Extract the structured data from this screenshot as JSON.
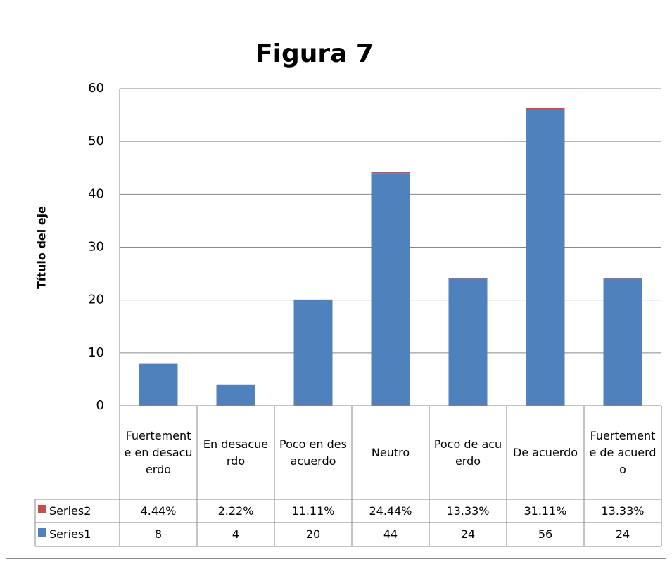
{
  "chart_data": {
    "type": "stacked_bar",
    "title": "Figura 7",
    "y_axis_label": "Título del eje",
    "categories": [
      "Fuertemente en desacuerdo",
      "En desacuerdo",
      "Poco en desacuerdo",
      "Neutro",
      "Poco de acuerdo",
      "De acuerdo",
      "Fuertemente de acuerdo"
    ],
    "series": [
      {
        "name": "Series1",
        "color": "#4f81bd",
        "values": [
          8,
          4,
          20,
          44,
          24,
          56,
          24
        ]
      },
      {
        "name": "Series2",
        "color": "#c0504d",
        "values": [
          0.0444,
          0.0222,
          0.1111,
          0.2444,
          0.1333,
          0.3111,
          0.1333
        ],
        "value_labels": [
          "4.44%",
          "2.22%",
          "11.11%",
          "24.44%",
          "13.33%",
          "31.11%",
          "13.33%"
        ]
      }
    ],
    "ylim": [
      0,
      60
    ],
    "yticks": [
      0,
      10,
      20,
      30,
      40,
      50,
      60
    ],
    "grid": true,
    "data_table": true
  }
}
